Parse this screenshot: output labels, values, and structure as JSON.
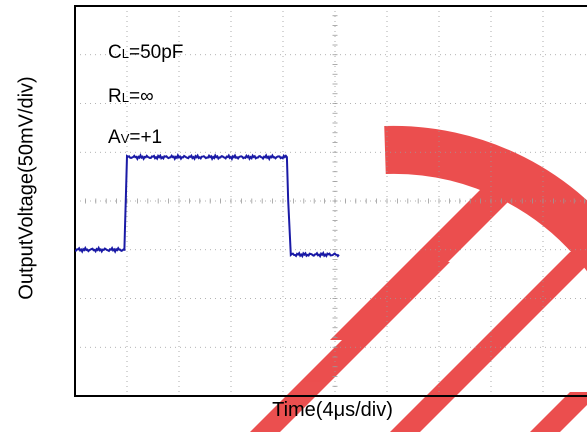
{
  "chart_data": {
    "type": "line",
    "title": "",
    "xlabel": "Time(4μs/div)",
    "ylabel": "OutputVoltage(50mV/div)",
    "x_unit_per_div": "4μs",
    "y_unit_per_div": "50mV",
    "xlim_div": [
      0,
      10
    ],
    "ylim_div": [
      -4,
      4
    ],
    "grid": "dotted",
    "trace_color": "#1a1aa6",
    "watermark_color": "#e83030",
    "series": [
      {
        "x_us": [
          0,
          3.8,
          3.84,
          4.0,
          16.3,
          16.4,
          16.6,
          20.3
        ],
        "y_mV": [
          -50,
          -50,
          -30,
          45,
          45,
          0,
          -55,
          -55
        ]
      }
    ],
    "annotations": {
      "cl": {
        "main": "C",
        "sub": "L",
        "value": "=50pF"
      },
      "rl": {
        "main": "R",
        "sub": "L",
        "value": "=∞"
      },
      "av": {
        "main": "A",
        "sub": "V",
        "value": "=+1"
      }
    }
  }
}
